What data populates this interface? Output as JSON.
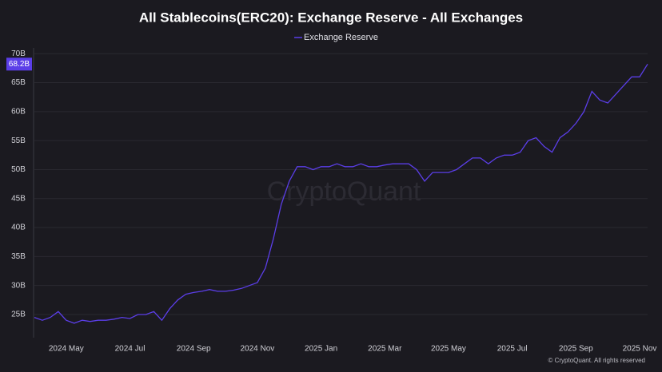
{
  "chart_data": {
    "type": "line",
    "title": "All Stablecoins(ERC20): Exchange Reserve - All Exchanges",
    "watermark": "CryptoQuant",
    "footer": "© CryptoQuant. All rights reserved",
    "categories": [
      null,
      null,
      null,
      null,
      "2024 May",
      null,
      null,
      null,
      null,
      null,
      null,
      null,
      "2024 Jul",
      null,
      null,
      null,
      null,
      null,
      null,
      null,
      "2024 Sep",
      null,
      null,
      null,
      null,
      null,
      null,
      null,
      "2024 Nov",
      null,
      null,
      null,
      null,
      null,
      null,
      null,
      "2025 Jan",
      null,
      null,
      null,
      null,
      null,
      null,
      null,
      "2025 Mar",
      null,
      null,
      null,
      null,
      null,
      null,
      null,
      "2025 May",
      null,
      null,
      null,
      null,
      null,
      null,
      null,
      "2025 Jul",
      null,
      null,
      null,
      null,
      null,
      null,
      null,
      "2025 Sep",
      null,
      null,
      null,
      null,
      null,
      null,
      null,
      "2025 Nov",
      null
    ],
    "series": [
      {
        "name": "Exchange Reserve",
        "color": "#5b3ee8",
        "values": [
          24.5,
          24,
          24.5,
          25.5,
          24,
          23.5,
          24,
          23.8,
          24,
          24,
          24.2,
          24.5,
          24.3,
          25,
          25,
          25.5,
          24,
          26,
          27.5,
          28.5,
          28.8,
          29,
          29.3,
          29,
          29,
          29.2,
          29.5,
          30,
          30.5,
          33,
          38,
          44,
          48,
          50.5,
          50.5,
          50,
          50.5,
          50.5,
          51,
          50.5,
          50.5,
          51,
          50.5,
          50.5,
          50.8,
          51,
          51,
          51,
          50,
          48,
          49.5,
          49.5,
          49.5,
          50,
          51,
          52,
          52,
          51,
          52,
          52.5,
          52.5,
          53,
          55,
          55.5,
          54,
          53,
          55.5,
          56.5,
          58,
          60,
          63.5,
          62,
          61.5,
          63,
          64.5,
          66,
          66,
          68.2
        ]
      }
    ],
    "current_value": {
      "value": 68.2,
      "label": "68.2B"
    },
    "ylim": [
      21,
      71
    ],
    "yticks": [
      {
        "value": 25,
        "label": "25B"
      },
      {
        "value": 30,
        "label": "30B"
      },
      {
        "value": 35,
        "label": "35B"
      },
      {
        "value": 40,
        "label": "40B"
      },
      {
        "value": 45,
        "label": "45B"
      },
      {
        "value": 50,
        "label": "50B"
      },
      {
        "value": 55,
        "label": "55B"
      },
      {
        "value": 60,
        "label": "60B"
      },
      {
        "value": 65,
        "label": "65B"
      },
      {
        "value": 70,
        "label": "70B"
      }
    ],
    "grid": true
  }
}
